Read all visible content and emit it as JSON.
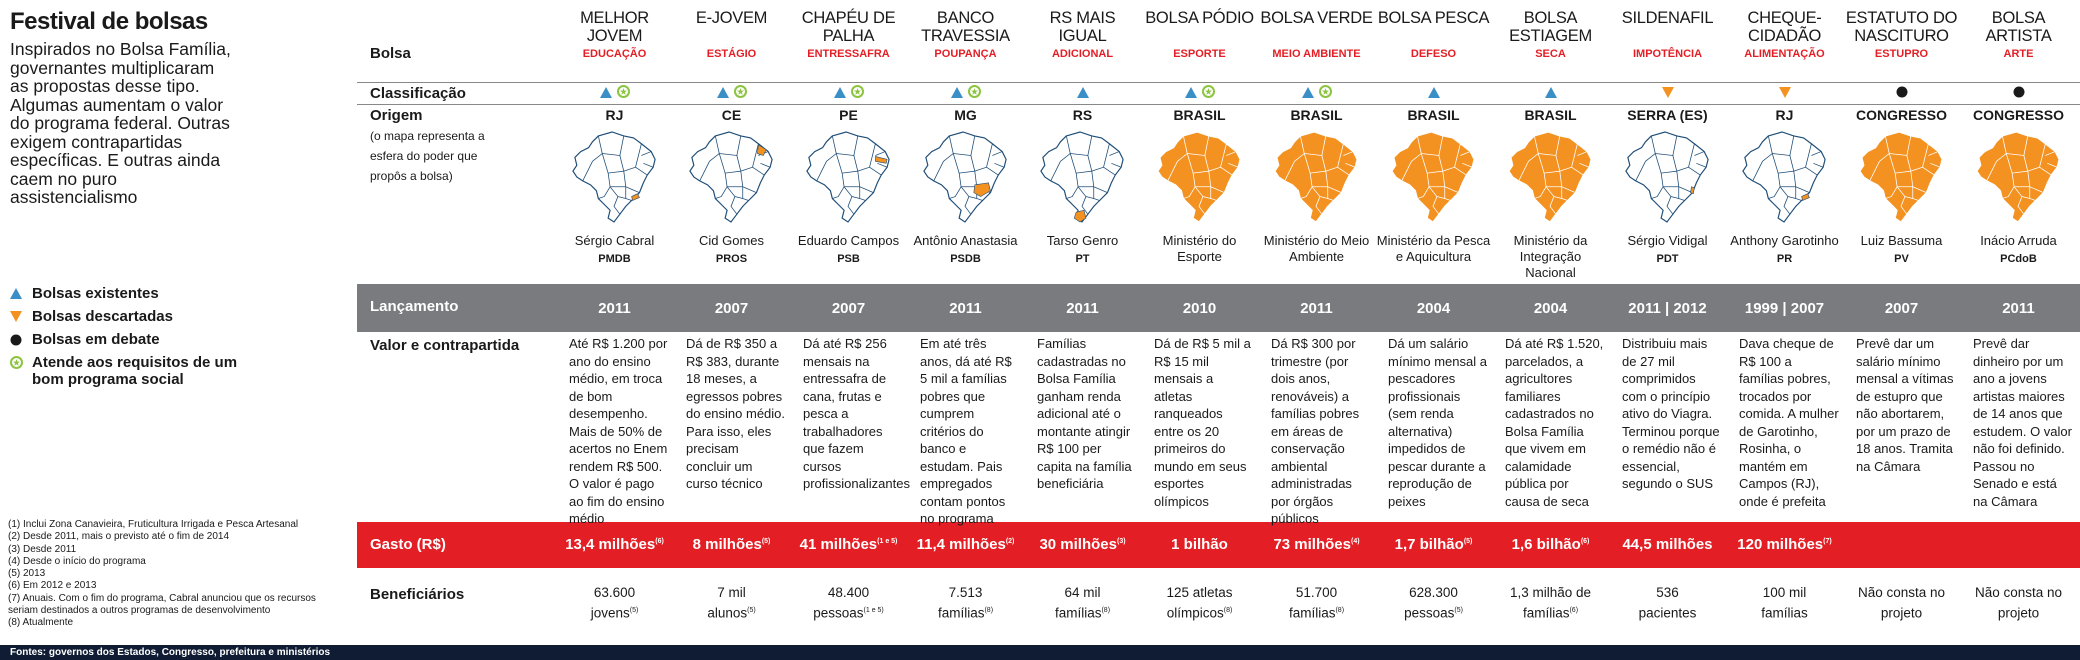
{
  "title": "Festival de bolsas",
  "intro": "Inspirados no Bolsa Família, governantes multiplicaram as propostas desse tipo. Algumas aumentam o valor do programa federal. Outras exigem contrapartidas específicas. E outras ainda caem no puro assistencialismo",
  "legend": [
    {
      "label": "Bolsas existentes",
      "icon": "triangle-up-icon",
      "color": "#3a8fc7"
    },
    {
      "label": "Bolsas descartadas",
      "icon": "triangle-down-icon",
      "color": "#f39221"
    },
    {
      "label": "Bolsas em debate",
      "icon": "dot-icon",
      "color": "#1a1a1a"
    },
    {
      "label": "Atende aos requisitos de um bom programa social",
      "icon": "star-circle-icon",
      "color": "#8cc43f"
    }
  ],
  "notes": [
    "(1) Inclui Zona Canavieira, Fruticultura Irrigada e Pesca Artesanal",
    "(2) Desde 2011, mais o previsto até o fim de 2014",
    "(3) Desde 2011",
    "(4) Desde o início do programa",
    "(5) 2013",
    "(6) Em 2012 e 2013",
    "(7) Anuais. Com o fim do programa, Cabral anunciou que os recursos seriam destinados a outros programas de desenvolvimento",
    "(8) Atualmente"
  ],
  "footer": "Fontes: governos dos Estados, Congresso, prefeitura e ministérios",
  "row_labels": {
    "bolsa": "Bolsa",
    "classificacao": "Classificação",
    "origem": "Origem",
    "origem_note": "(o mapa representa a esfera do poder que propôs a bolsa)",
    "lancamento": "Lançamento",
    "valor": "Valor e contrapartida",
    "gasto": "Gasto (R$)",
    "beneficiarios": "Beneficiários"
  },
  "colors": {
    "orange": "#f39221",
    "blue": "#3a8fc7",
    "green": "#8cc43f",
    "red": "#e31e24",
    "gray": "#7a7b7e"
  },
  "columns": [
    {
      "name": "MELHOR JOVEM",
      "tag": "EDUCAÇÃO",
      "status": "existente",
      "good": true,
      "origin": "RJ",
      "map_scope": "state",
      "highlight": "rj",
      "person": "Sérgio Cabral",
      "party": "PMDB",
      "year": "2011",
      "desc": "Até R$ 1.200 por ano do ensino médio, em troca de bom desempenho. Mais de 50% de acertos no Enem rendem R$ 500. O valor é pago ao fim do ensino médio",
      "gasto": "13,4 milhões",
      "gasto_note": "(6)",
      "ben": "63.600",
      "ben2": "jovens",
      "ben_note": "(5)"
    },
    {
      "name": "E-JOVEM",
      "tag": "ESTÁGIO",
      "status": "existente",
      "good": true,
      "origin": "CE",
      "map_scope": "state",
      "highlight": "ce",
      "person": "Cid Gomes",
      "party": "PROS",
      "year": "2007",
      "desc": "Dá de R$ 350 a R$ 383, durante 18 meses, a egressos pobres do ensino médio. Para isso, eles precisam concluir um curso técnico",
      "gasto": "8 milhões",
      "gasto_note": "(5)",
      "ben": "7 mil",
      "ben2": "alunos",
      "ben_note": "(5)"
    },
    {
      "name": "CHAPÉU DE PALHA",
      "tag": "ENTRESSAFRA",
      "status": "existente",
      "good": true,
      "origin": "PE",
      "map_scope": "state",
      "highlight": "pe",
      "person": "Eduardo Campos",
      "party": "PSB",
      "year": "2007",
      "desc": "Dá até R$ 256 mensais na entressafra de cana, frutas e pesca a trabalhadores que fazem cursos profissionalizantes",
      "gasto": "41 milhões",
      "gasto_note": "(1 e 5)",
      "ben": "48.400",
      "ben2": "pessoas",
      "ben_note": "(1 e 5)"
    },
    {
      "name": "BANCO TRAVESSIA",
      "tag": "POUPANÇA",
      "status": "existente",
      "good": true,
      "origin": "MG",
      "map_scope": "state",
      "highlight": "mg",
      "person": "Antônio Anastasia",
      "party": "PSDB",
      "year": "2011",
      "desc": "Em até três anos, dá até R$ 5 mil a famílias pobres que cumprem critérios do banco e estudam. Pais empregados contam pontos no programa",
      "gasto": "11,4 milhões",
      "gasto_note": "(2)",
      "ben": "7.513",
      "ben2": "famílias",
      "ben_note": "(8)"
    },
    {
      "name": "RS MAIS IGUAL",
      "tag": "ADICIONAL",
      "status": "existente",
      "good": false,
      "origin": "RS",
      "map_scope": "state",
      "highlight": "rs",
      "person": "Tarso Genro",
      "party": "PT",
      "year": "2011",
      "desc": "Famílias cadastradas no Bolsa Família ganham renda adicional até o montante atingir R$ 100 per capita na família beneficiária",
      "gasto": "30 milhões",
      "gasto_note": "(3)",
      "ben": "64 mil",
      "ben2": "famílias",
      "ben_note": "(8)"
    },
    {
      "name": "BOLSA PÓDIO",
      "tag": "ESPORTE",
      "status": "existente",
      "good": true,
      "origin": "BRASIL",
      "map_scope": "federal",
      "highlight": "all",
      "person": "Ministério do Esporte",
      "party": "",
      "year": "2010",
      "desc": "Dá de R$ 5 mil a R$ 15 mil mensais a atletas ranqueados entre os 20 primeiros do mundo em seus esportes olímpicos",
      "gasto": "1 bilhão",
      "gasto_note": "",
      "ben": "125 atletas",
      "ben2": "olímpicos",
      "ben_note": "(8)"
    },
    {
      "name": "BOLSA VERDE",
      "tag": "MEIO AMBIENTE",
      "status": "existente",
      "good": true,
      "origin": "BRASIL",
      "map_scope": "federal",
      "highlight": "all",
      "person": "Ministério do Meio Ambiente",
      "party": "",
      "year": "2011",
      "desc": "Dá R$ 300 por trimestre (por dois anos, renováveis) a famílias pobres em áreas de conservação ambiental administradas por órgãos públicos",
      "gasto": "73 milhões",
      "gasto_note": "(4)",
      "ben": "51.700",
      "ben2": "famílias",
      "ben_note": "(8)"
    },
    {
      "name": "BOLSA PESCA",
      "tag": "DEFESO",
      "status": "existente",
      "good": false,
      "origin": "BRASIL",
      "map_scope": "federal",
      "highlight": "all",
      "person": "Ministério da Pesca e Aquicultura",
      "party": "",
      "year": "2004",
      "desc": "Dá um salário mínimo mensal a pescadores profissionais (sem renda alternativa) impedidos de pescar durante a reprodução de peixes",
      "gasto": "1,7 bilhão",
      "gasto_note": "(5)",
      "ben": "628.300",
      "ben2": "pessoas",
      "ben_note": "(5)"
    },
    {
      "name": "BOLSA ESTIAGEM",
      "tag": "SECA",
      "status": "existente",
      "good": false,
      "origin": "BRASIL",
      "map_scope": "federal",
      "highlight": "all",
      "person": "Ministério da Integração Nacional",
      "party": "",
      "year": "2004",
      "desc": "Dá até R$ 1.520, parcelados, a agricultores familiares cadastrados no Bolsa Família que vivem em calamidade pública por causa de seca",
      "gasto": "1,6 bilhão",
      "gasto_note": "(6)",
      "ben": "1,3 milhão de",
      "ben2": "famílias",
      "ben_note": "(6)"
    },
    {
      "name": "SILDENAFIL",
      "tag": "IMPOTÊNCIA",
      "status": "descartada",
      "good": false,
      "origin": "SERRA (ES)",
      "map_scope": "municipal",
      "highlight": "es",
      "person": "Sérgio Vidigal",
      "party": "PDT",
      "year": "2011 | 2012",
      "desc": "Distribuiu mais de 27 mil comprimidos com o princípio ativo do Viagra. Terminou porque o remédio não é essencial, segundo o SUS",
      "gasto": "44,5 milhões",
      "gasto_note": "",
      "ben": "536",
      "ben2": "pacientes",
      "ben_note": ""
    },
    {
      "name": "CHEQUE-CIDADÃO",
      "tag": "ALIMENTAÇÃO",
      "status": "descartada",
      "good": false,
      "origin": "RJ",
      "map_scope": "state",
      "highlight": "rj",
      "person": "Anthony Garotinho",
      "party": "PR",
      "year": "1999 | 2007",
      "desc": "Dava cheque de R$ 100 a famílias pobres, trocados por comida. A mulher de Garotinho, Rosinha, o mantém em Campos (RJ), onde é prefeita",
      "gasto": "120 milhões",
      "gasto_note": "(7)",
      "ben": "100 mil",
      "ben2": "famílias",
      "ben_note": ""
    },
    {
      "name": "ESTATUTO DO NASCITURO",
      "tag": "ESTUPRO",
      "status": "debate",
      "good": false,
      "origin": "CONGRESSO",
      "map_scope": "federal",
      "highlight": "all",
      "person": "Luiz Bassuma",
      "party": "PV",
      "year": "2007",
      "desc": "Prevê dar um salário mínimo mensal a vítimas de estupro que não abortarem, por um prazo de 18 anos. Tramita na Câmara",
      "gasto": "",
      "gasto_note": "",
      "ben": "Não consta no",
      "ben2": "projeto",
      "ben_note": ""
    },
    {
      "name": "BOLSA ARTISTA",
      "tag": "ARTE",
      "status": "debate",
      "good": false,
      "origin": "CONGRESSO",
      "map_scope": "federal",
      "highlight": "all",
      "person": "Inácio Arruda",
      "party": "PCdoB",
      "year": "2011",
      "desc": "Prevê dar dinheiro por um ano a jovens artistas maiores de 14 anos que estudem. O valor não foi definido. Passou no Senado e está na Câmara",
      "gasto": "",
      "gasto_note": "",
      "ben": "Não consta no",
      "ben2": "projeto",
      "ben_note": ""
    }
  ]
}
